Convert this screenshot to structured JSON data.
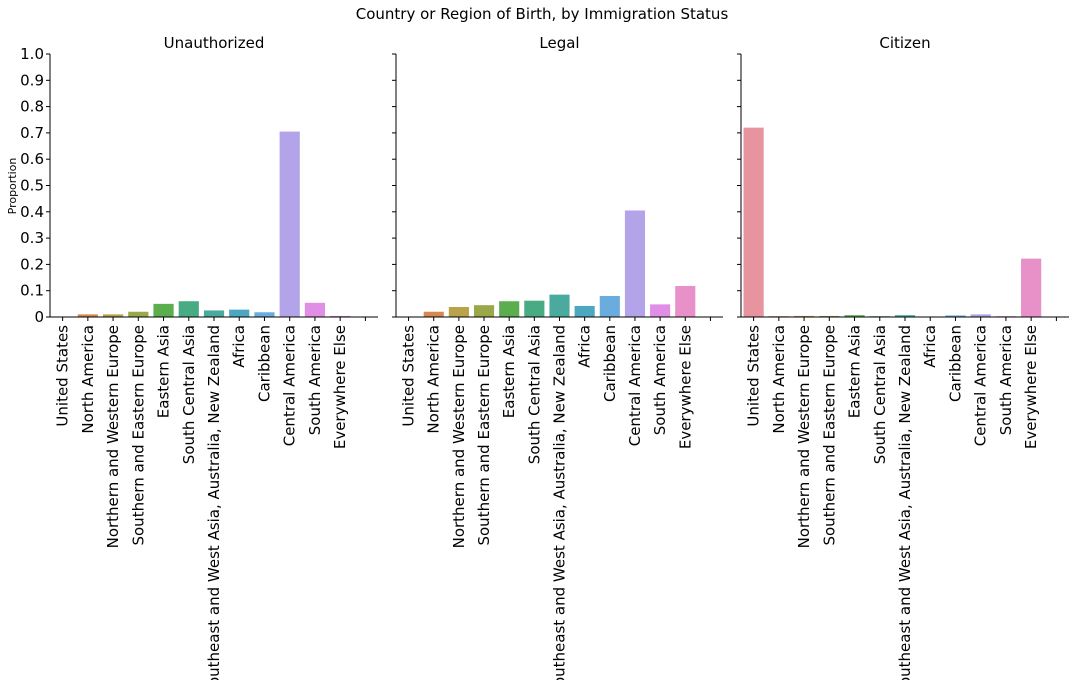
{
  "chart_data": {
    "type": "bar",
    "title": "Country or Region of Birth, by Immigration Status",
    "ylabel": "Proportion",
    "xlabel": "",
    "ylim": [
      0,
      1.0
    ],
    "yticks": [
      "0",
      "0.1",
      "0.2",
      "0.3",
      "0.4",
      "0.5",
      "0.6",
      "0.7",
      "0.8",
      "0.9",
      "1.0"
    ],
    "shared_y": true,
    "grid": false,
    "categories": [
      "United States",
      "North America",
      "Northern and Western Europe",
      "Southern and Eastern Europe",
      "Eastern Asia",
      "South Central Asia",
      "Southeast and West Asia, Australia, New Zealand",
      "Africa",
      "Caribbean",
      "Central America",
      "South America",
      "Everywhere Else"
    ],
    "colors": [
      "#e8949e",
      "#d6884e",
      "#b8a24a",
      "#9aa84a",
      "#5aae4e",
      "#48ab83",
      "#4aaa9e",
      "#4ba8c0",
      "#6aacde",
      "#b3a3e8",
      "#e08ee6",
      "#e890c8"
    ],
    "panels": [
      {
        "title": "Unauthorized",
        "values": [
          0.0,
          0.01,
          0.01,
          0.02,
          0.05,
          0.06,
          0.025,
          0.028,
          0.018,
          0.705,
          0.054,
          0.004
        ]
      },
      {
        "title": "Legal",
        "values": [
          0.0,
          0.02,
          0.038,
          0.045,
          0.06,
          0.062,
          0.085,
          0.042,
          0.08,
          0.405,
          0.048,
          0.118
        ]
      },
      {
        "title": "Citizen",
        "values": [
          0.72,
          0.003,
          0.004,
          0.004,
          0.007,
          0.003,
          0.007,
          0.001,
          0.006,
          0.01,
          0.003,
          0.222
        ]
      }
    ]
  }
}
